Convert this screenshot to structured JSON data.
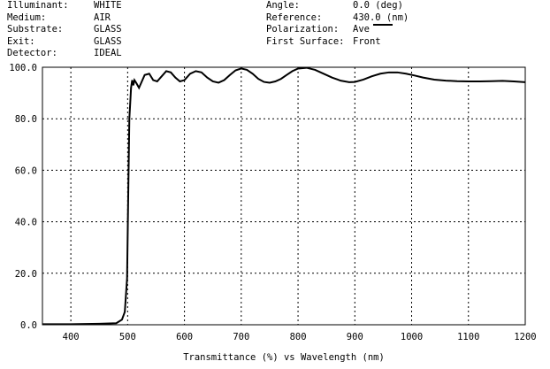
{
  "header": {
    "left": [
      {
        "key": "Illuminant:",
        "value": "WHITE"
      },
      {
        "key": "Medium:",
        "value": "AIR"
      },
      {
        "key": "Substrate:",
        "value": "GLASS"
      },
      {
        "key": "Exit:",
        "value": "GLASS"
      },
      {
        "key": "Detector:",
        "value": "IDEAL"
      }
    ],
    "right": [
      {
        "key": "Angle:",
        "value": "0.0 (deg)"
      },
      {
        "key": "Reference:",
        "value": "430.0 (nm)"
      },
      {
        "key": "Polarization:",
        "value": "Ave"
      },
      {
        "key": "First Surface:",
        "value": "Front"
      }
    ]
  },
  "chart_data": {
    "type": "line",
    "xlabel": "Transmittance (%)  vs  Wavelength (nm)",
    "ylabel": "",
    "xlim": [
      350,
      1200
    ],
    "ylim": [
      0,
      100
    ],
    "x_ticks": [
      "400",
      "500",
      "600",
      "700",
      "800",
      "900",
      "1000",
      "1100",
      "1200"
    ],
    "y_ticks": [
      "0.0",
      "20.0",
      "40.0",
      "60.0",
      "80.0",
      "100.0"
    ],
    "grid": true,
    "line_color": "#000000",
    "series": [
      {
        "x": [
          350,
          400,
          450,
          480,
          490,
          495,
          499,
          501,
          503,
          506,
          508,
          510,
          512,
          515,
          520,
          525,
          530,
          538,
          545,
          552,
          560,
          568,
          576,
          584,
          592,
          600,
          610,
          620,
          630,
          640,
          650,
          660,
          670,
          680,
          690,
          700,
          710,
          720,
          730,
          740,
          750,
          760,
          770,
          780,
          790,
          800,
          815,
          830,
          845,
          860,
          875,
          890,
          900,
          915,
          930,
          945,
          960,
          975,
          990,
          1005,
          1020,
          1040,
          1060,
          1080,
          1100,
          1120,
          1140,
          1160,
          1180,
          1200
        ],
        "y": [
          0.2,
          0.2,
          0.4,
          0.6,
          2.0,
          5.0,
          18.0,
          50.0,
          80.0,
          92.0,
          95.0,
          93.0,
          95.0,
          94.0,
          92.0,
          94.5,
          97.0,
          97.5,
          95.0,
          94.5,
          96.5,
          98.5,
          98.0,
          96.0,
          94.5,
          95.0,
          97.5,
          98.5,
          98.0,
          96.0,
          94.5,
          94.0,
          95.0,
          97.0,
          98.8,
          99.5,
          99.0,
          97.5,
          95.5,
          94.3,
          94.0,
          94.5,
          95.5,
          97.0,
          98.5,
          99.5,
          99.8,
          99.0,
          97.5,
          96.0,
          94.8,
          94.2,
          94.3,
          95.2,
          96.5,
          97.5,
          98.0,
          98.0,
          97.5,
          96.8,
          96.0,
          95.2,
          94.8,
          94.6,
          94.5,
          94.5,
          94.6,
          94.7,
          94.5,
          94.2
        ]
      }
    ]
  }
}
